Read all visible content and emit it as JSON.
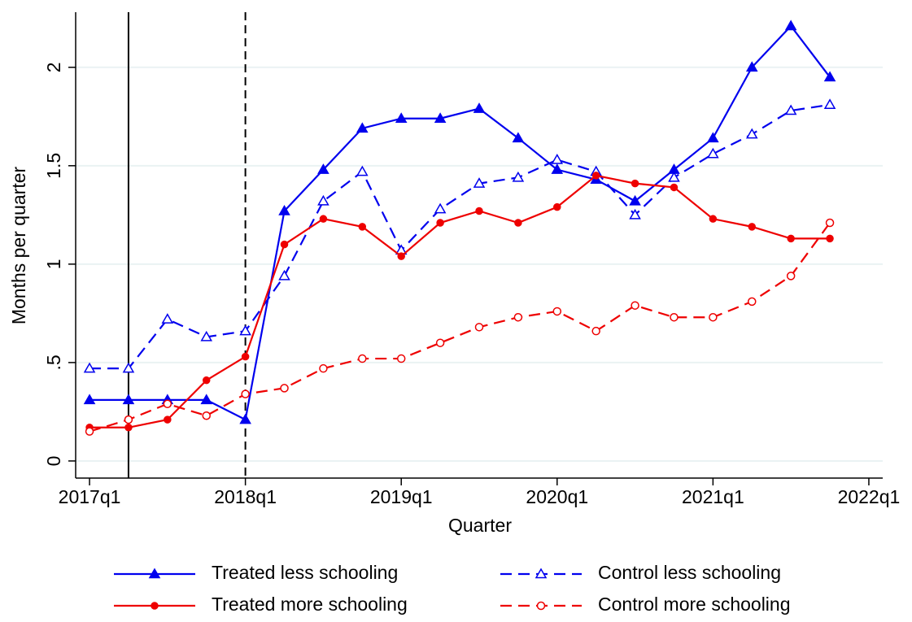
{
  "chart_data": {
    "type": "line",
    "xlabel": "Quarter",
    "ylabel": "Months per quarter",
    "x": [
      2017.0,
      2017.25,
      2017.5,
      2017.75,
      2018.0,
      2018.25,
      2018.5,
      2018.75,
      2019.0,
      2019.25,
      2019.5,
      2019.75,
      2020.0,
      2020.25,
      2020.5,
      2020.75,
      2021.0,
      2021.25,
      2021.5,
      2021.75
    ],
    "xlim": [
      2016.911,
      2022.089
    ],
    "xticks": [
      {
        "value": 2017,
        "label": "2017q1"
      },
      {
        "value": 2018,
        "label": "2018q1"
      },
      {
        "value": 2019,
        "label": "2019q1"
      },
      {
        "value": 2020,
        "label": "2020q1"
      },
      {
        "value": 2021,
        "label": "2021q1"
      },
      {
        "value": 2022,
        "label": "2022q1"
      }
    ],
    "ylim": [
      -0.087,
      2.28
    ],
    "yticks": [
      0,
      {
        "value": 0.5,
        "label": ".5"
      },
      1,
      1.5,
      2
    ],
    "grid": true,
    "vlines": [
      {
        "x": 2017.25,
        "style": "solid"
      },
      {
        "x": 2018.0,
        "style": "dashed"
      }
    ],
    "legend_position": "bottom",
    "series": [
      {
        "name": "Treated less schooling",
        "color": "#0000ee",
        "dashed": false,
        "marker": "triangle",
        "filled": true,
        "values": [
          0.31,
          0.31,
          0.31,
          0.31,
          0.21,
          1.27,
          1.48,
          1.69,
          1.74,
          1.74,
          1.79,
          1.64,
          1.48,
          1.43,
          1.32,
          1.48,
          1.64,
          2.0,
          2.21,
          1.95
        ]
      },
      {
        "name": "Control less schooling",
        "color": "#0000ee",
        "dashed": true,
        "marker": "triangle",
        "filled": false,
        "values": [
          0.47,
          0.47,
          0.72,
          0.63,
          0.66,
          0.94,
          1.32,
          1.47,
          1.07,
          1.28,
          1.41,
          1.44,
          1.53,
          1.47,
          1.25,
          1.44,
          1.56,
          1.66,
          1.78,
          1.81
        ]
      },
      {
        "name": "Treated more schooling",
        "color": "#ee0000",
        "dashed": false,
        "marker": "circle",
        "filled": true,
        "values": [
          0.17,
          0.17,
          0.21,
          0.41,
          0.53,
          1.1,
          1.23,
          1.19,
          1.04,
          1.21,
          1.27,
          1.21,
          1.29,
          1.45,
          1.41,
          1.39,
          1.23,
          1.19,
          1.13,
          1.13
        ]
      },
      {
        "name": "Control more schooling",
        "color": "#ee0000",
        "dashed": true,
        "marker": "circle",
        "filled": false,
        "values": [
          0.15,
          0.21,
          0.29,
          0.23,
          0.34,
          0.37,
          0.47,
          0.52,
          0.52,
          0.6,
          0.68,
          0.73,
          0.76,
          0.66,
          0.79,
          0.73,
          0.73,
          0.81,
          0.94,
          1.21
        ]
      }
    ]
  }
}
